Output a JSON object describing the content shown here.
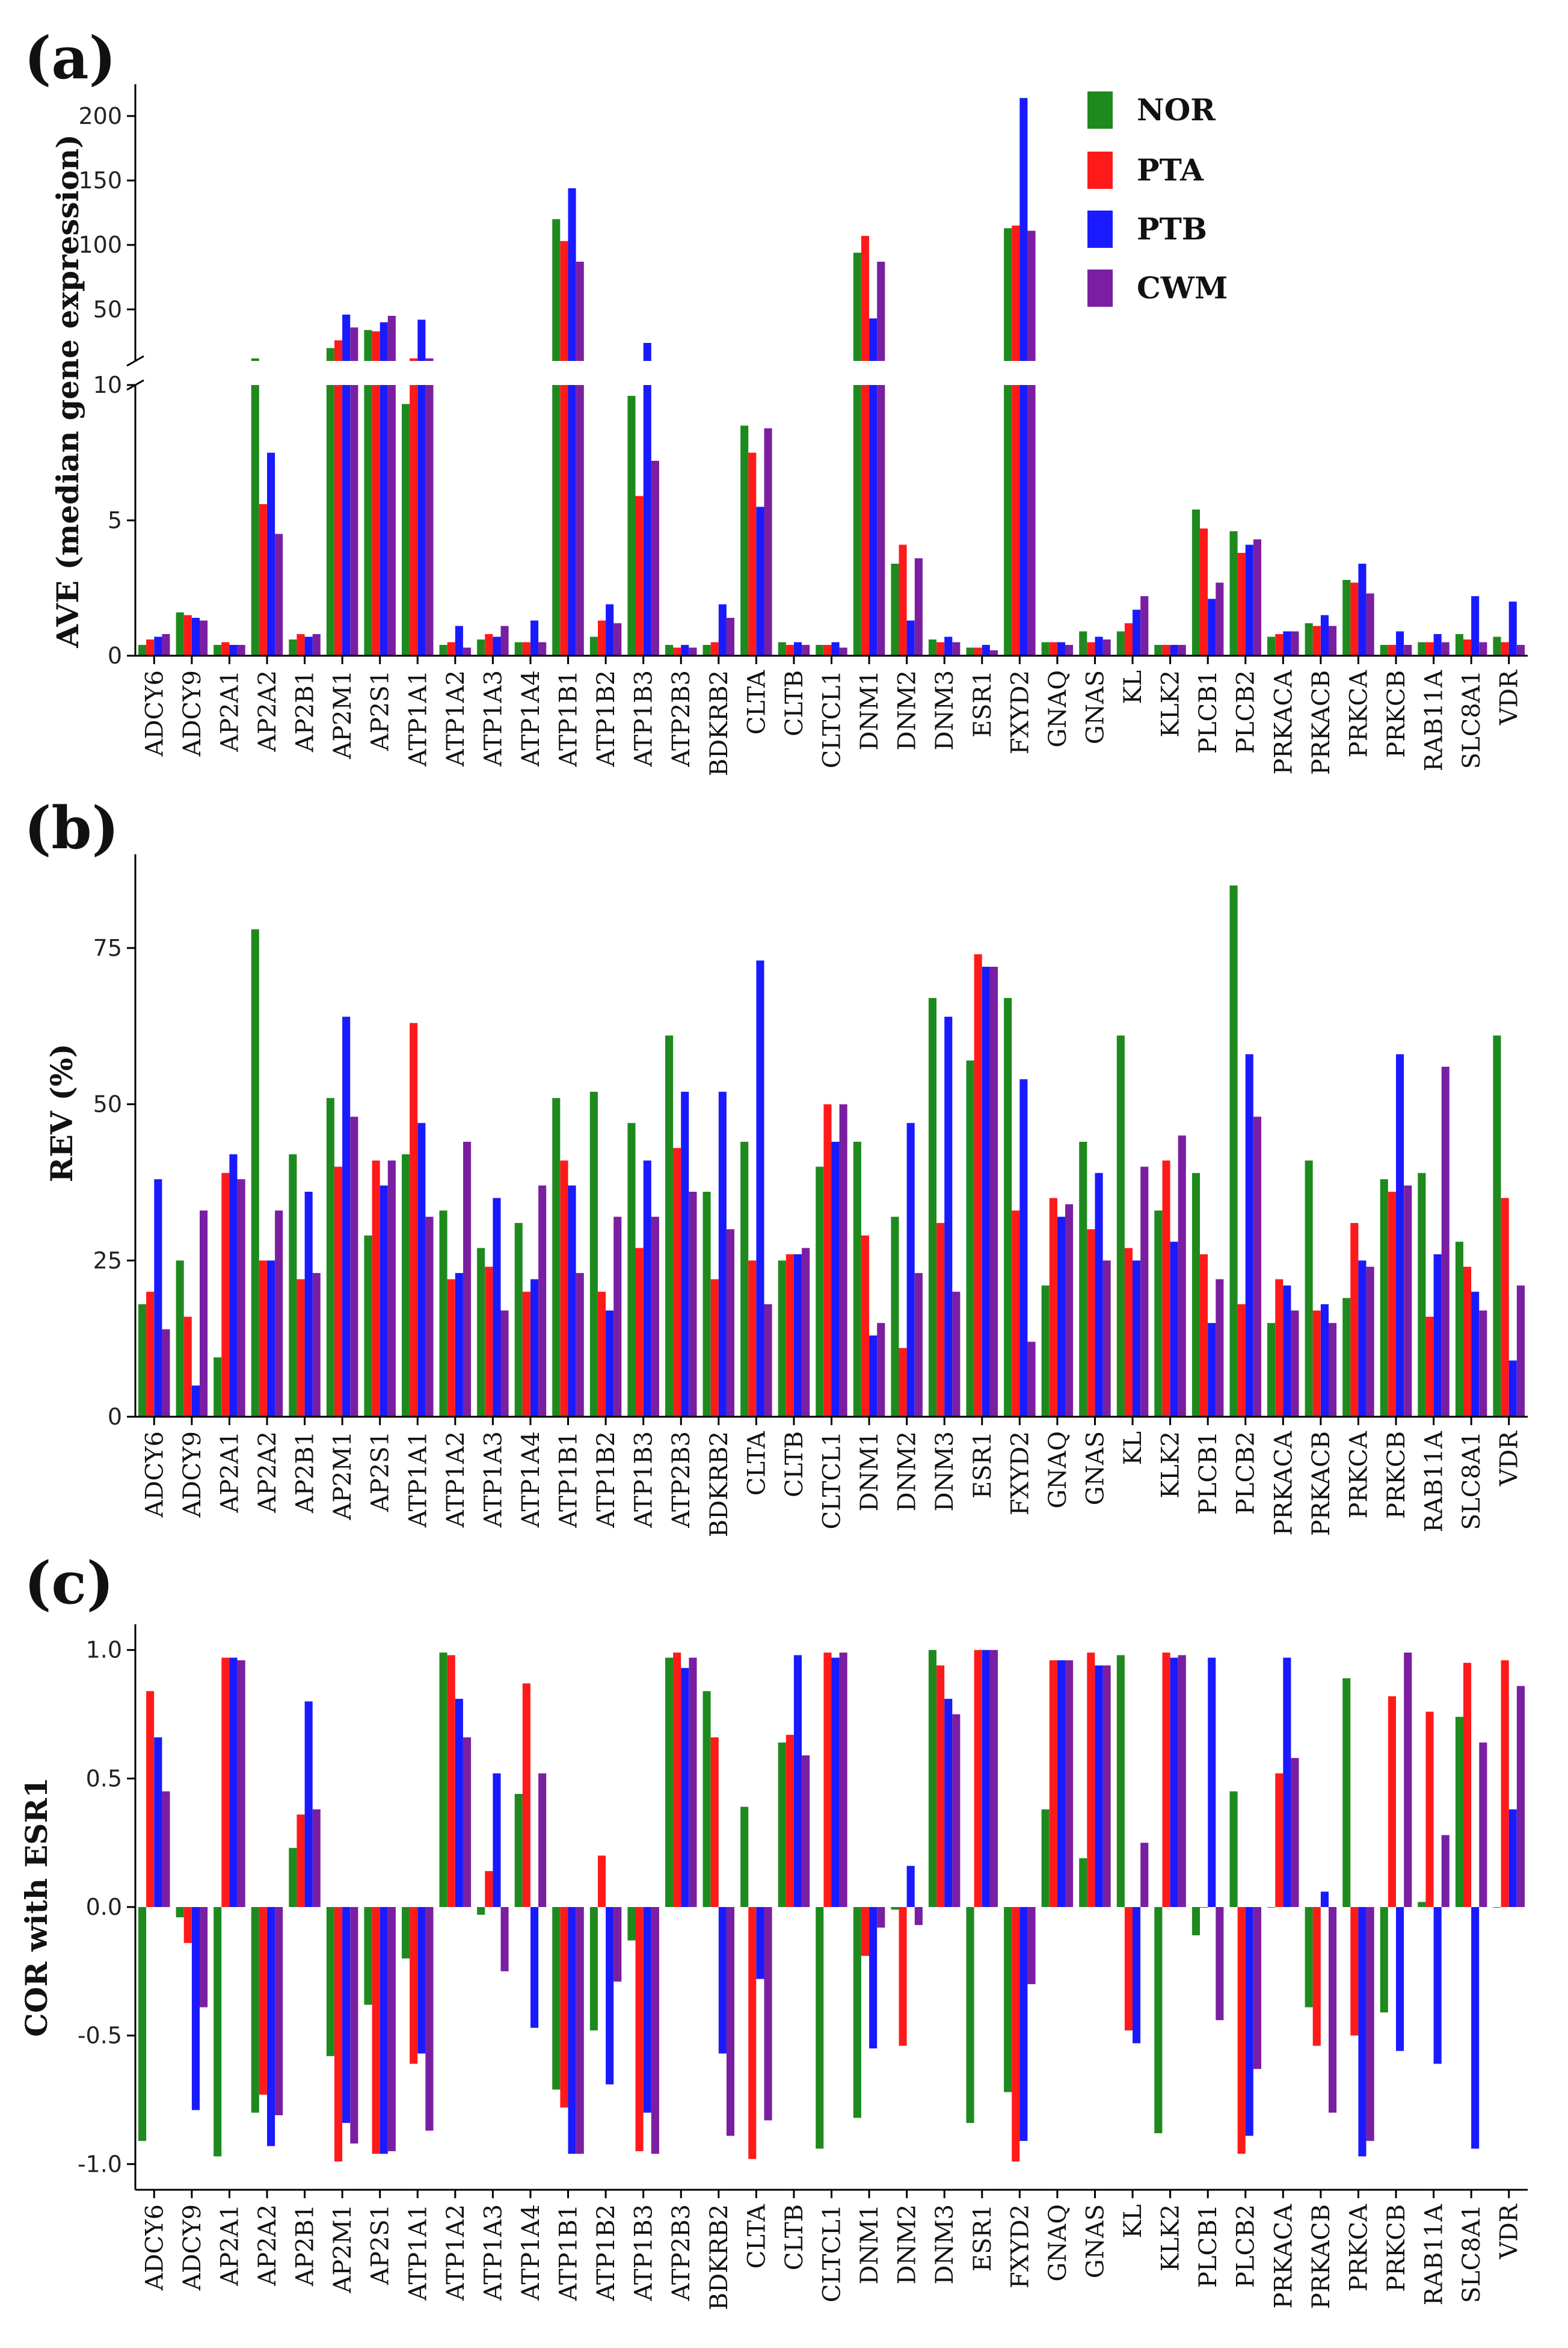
{
  "legend": [
    {
      "name": "NOR",
      "color": "#1e8a1e"
    },
    {
      "name": "PTA",
      "color": "#ff1a1a"
    },
    {
      "name": "PTB",
      "color": "#1a1aff"
    },
    {
      "name": "CWM",
      "color": "#7a1fa2"
    }
  ],
  "chart_data": [
    {
      "type": "bar",
      "panel_label": "(a)",
      "ylabel": "AVE (median gene expression)",
      "axis_break": true,
      "lower_ylim": [
        0,
        10
      ],
      "lower_yticks": [
        "0",
        "5",
        "10"
      ],
      "upper_ylim": [
        10,
        220
      ],
      "upper_yticks": [
        "50",
        "100",
        "150",
        "200"
      ],
      "categories": [
        "ADCY6",
        "ADCY9",
        "AP2A1",
        "AP2A2",
        "AP2B1",
        "AP2M1",
        "AP2S1",
        "ATP1A1",
        "ATP1A2",
        "ATP1A3",
        "ATP1A4",
        "ATP1B1",
        "ATP1B2",
        "ATP1B3",
        "ATP2B3",
        "BDKRB2",
        "CLTA",
        "CLTB",
        "CLTCL1",
        "DNM1",
        "DNM2",
        "DNM3",
        "ESR1",
        "FXYD2",
        "GNAQ",
        "GNAS",
        "KL",
        "KLK2",
        "PLCB1",
        "PLCB2",
        "PRKACA",
        "PRKACB",
        "PRKCA",
        "PRKCB",
        "RAB11A",
        "SLC8A1",
        "VDR"
      ],
      "series": [
        {
          "name": "NOR",
          "values": [
            0.4,
            1.6,
            0.4,
            12,
            0.6,
            20,
            34,
            9.3,
            0.4,
            0.6,
            0.5,
            120,
            0.7,
            9.6,
            0.4,
            0.4,
            8.5,
            0.5,
            0.4,
            94,
            3.4,
            0.6,
            0.3,
            113,
            0.5,
            0.9,
            0.9,
            0.4,
            5.4,
            4.6,
            0.7,
            1.2,
            2.8,
            0.4,
            0.5,
            0.8,
            0.7
          ]
        },
        {
          "name": "PTA",
          "values": [
            0.6,
            1.5,
            0.5,
            5.6,
            0.8,
            26,
            33,
            12,
            0.5,
            0.8,
            0.5,
            103,
            1.3,
            5.9,
            0.3,
            0.5,
            7.5,
            0.4,
            0.4,
            107,
            4.1,
            0.5,
            0.3,
            115,
            0.5,
            0.5,
            1.2,
            0.4,
            4.7,
            3.8,
            0.8,
            1.1,
            2.7,
            0.4,
            0.5,
            0.6,
            0.5
          ]
        },
        {
          "name": "PTB",
          "values": [
            0.7,
            1.4,
            0.4,
            7.5,
            0.7,
            46,
            40,
            42,
            1.1,
            0.7,
            1.3,
            144,
            1.9,
            24,
            0.4,
            1.9,
            5.5,
            0.5,
            0.5,
            43,
            1.3,
            0.7,
            0.4,
            214,
            0.5,
            0.7,
            1.7,
            0.4,
            2.1,
            4.1,
            0.9,
            1.5,
            3.4,
            0.9,
            0.8,
            2.2,
            2.0
          ]
        },
        {
          "name": "CWM",
          "values": [
            0.8,
            1.3,
            0.4,
            4.5,
            0.8,
            36,
            45,
            12,
            0.3,
            1.1,
            0.5,
            87,
            1.2,
            7.2,
            0.3,
            1.4,
            8.4,
            0.4,
            0.3,
            87,
            3.6,
            0.5,
            0.2,
            111,
            0.4,
            0.6,
            2.2,
            0.4,
            2.7,
            4.3,
            0.9,
            1.1,
            2.3,
            0.4,
            0.5,
            0.5,
            0.4
          ]
        }
      ]
    },
    {
      "type": "bar",
      "panel_label": "(b)",
      "ylabel": "REV (%)",
      "ylim": [
        0,
        90
      ],
      "yticks": [
        "0",
        "25",
        "50",
        "75"
      ],
      "categories": [
        "ADCY6",
        "ADCY9",
        "AP2A1",
        "AP2A2",
        "AP2B1",
        "AP2M1",
        "AP2S1",
        "ATP1A1",
        "ATP1A2",
        "ATP1A3",
        "ATP1A4",
        "ATP1B1",
        "ATP1B2",
        "ATP1B3",
        "ATP2B3",
        "BDKRB2",
        "CLTA",
        "CLTB",
        "CLTCL1",
        "DNM1",
        "DNM2",
        "DNM3",
        "ESR1",
        "FXYD2",
        "GNAQ",
        "GNAS",
        "KL",
        "KLK2",
        "PLCB1",
        "PLCB2",
        "PRKACA",
        "PRKACB",
        "PRKCA",
        "PRKCB",
        "RAB11A",
        "SLC8A1",
        "VDR"
      ],
      "series": [
        {
          "name": "NOR",
          "values": [
            18,
            25,
            9.5,
            78,
            42,
            51,
            29,
            42,
            33,
            27,
            31,
            51,
            52,
            47,
            61,
            36,
            44,
            25,
            40,
            44,
            32,
            67,
            57,
            67,
            21,
            44,
            61,
            33,
            39,
            85,
            15,
            41,
            19,
            38,
            39,
            28,
            61
          ]
        },
        {
          "name": "PTA",
          "values": [
            20,
            16,
            39,
            25,
            22,
            40,
            41,
            63,
            22,
            24,
            20,
            41,
            20,
            27,
            43,
            22,
            25,
            26,
            50,
            29,
            11,
            31,
            74,
            33,
            35,
            30,
            27,
            41,
            26,
            18,
            22,
            17,
            31,
            36,
            16,
            24,
            35
          ]
        },
        {
          "name": "PTB",
          "values": [
            38,
            5,
            42,
            25,
            36,
            64,
            37,
            47,
            23,
            35,
            22,
            37,
            17,
            41,
            52,
            52,
            73,
            26,
            44,
            13,
            47,
            64,
            72,
            54,
            32,
            39,
            25,
            28,
            15,
            58,
            21,
            18,
            25,
            58,
            26,
            20,
            9
          ]
        },
        {
          "name": "CWM",
          "values": [
            14,
            33,
            38,
            33,
            23,
            48,
            41,
            32,
            44,
            17,
            37,
            23,
            32,
            32,
            36,
            30,
            18,
            27,
            50,
            15,
            23,
            20,
            72,
            12,
            34,
            25,
            40,
            45,
            22,
            48,
            17,
            15,
            24,
            37,
            56,
            17,
            21
          ]
        }
      ]
    },
    {
      "type": "bar",
      "panel_label": "(c)",
      "ylabel": "COR with ESR1",
      "ylim": [
        -1.1,
        1.1
      ],
      "yticks": [
        "-1.0",
        "-0.5",
        "0.0",
        "0.5",
        "1.0"
      ],
      "categories": [
        "ADCY6",
        "ADCY9",
        "AP2A1",
        "AP2A2",
        "AP2B1",
        "AP2M1",
        "AP2S1",
        "ATP1A1",
        "ATP1A2",
        "ATP1A3",
        "ATP1A4",
        "ATP1B1",
        "ATP1B2",
        "ATP1B3",
        "ATP2B3",
        "BDKRB2",
        "CLTA",
        "CLTB",
        "CLTCL1",
        "DNM1",
        "DNM2",
        "DNM3",
        "ESR1",
        "FXYD2",
        "GNAQ",
        "GNAS",
        "KL",
        "KLK2",
        "PLCB1",
        "PLCB2",
        "PRKACA",
        "PRKACB",
        "PRKCA",
        "PRKCB",
        "RAB11A",
        "SLC8A1",
        "VDR"
      ],
      "series": [
        {
          "name": "NOR",
          "values": [
            -0.91,
            -0.04,
            -0.97,
            -0.8,
            0.23,
            -0.58,
            -0.38,
            -0.2,
            0.99,
            -0.03,
            0.44,
            -0.71,
            -0.48,
            -0.13,
            0.97,
            0.84,
            0.39,
            0.64,
            -0.94,
            -0.82,
            -0.01,
            1.0,
            -0.84,
            -0.72,
            0.38,
            0.19,
            0.98,
            -0.88,
            -0.11,
            0.45,
            0.0,
            -0.39,
            0.89,
            -0.41,
            0.02,
            0.74,
            0.0
          ]
        },
        {
          "name": "PTA",
          "values": [
            0.84,
            -0.14,
            0.97,
            -0.73,
            0.36,
            -0.99,
            -0.96,
            -0.61,
            0.98,
            0.14,
            0.87,
            -0.78,
            0.2,
            -0.95,
            0.99,
            0.66,
            -0.98,
            0.67,
            0.99,
            -0.19,
            -0.54,
            0.94,
            1.0,
            -0.99,
            0.96,
            0.99,
            -0.48,
            0.99,
            0.0,
            -0.96,
            0.52,
            -0.54,
            -0.5,
            0.82,
            0.76,
            0.95,
            0.96
          ]
        },
        {
          "name": "PTB",
          "values": [
            0.66,
            -0.79,
            0.97,
            -0.93,
            0.8,
            -0.84,
            -0.96,
            -0.57,
            0.81,
            0.52,
            -0.47,
            -0.96,
            -0.69,
            -0.8,
            0.93,
            -0.57,
            -0.28,
            0.98,
            0.97,
            -0.55,
            0.16,
            0.81,
            1.0,
            -0.91,
            0.96,
            0.94,
            -0.53,
            0.97,
            0.97,
            -0.89,
            0.97,
            0.06,
            -0.97,
            -0.56,
            -0.61,
            -0.94,
            0.38
          ]
        },
        {
          "name": "CWM",
          "values": [
            0.45,
            -0.39,
            0.96,
            -0.81,
            0.38,
            -0.92,
            -0.95,
            -0.87,
            0.66,
            -0.25,
            0.52,
            -0.96,
            -0.29,
            -0.96,
            0.97,
            -0.89,
            -0.83,
            0.59,
            0.99,
            -0.08,
            -0.07,
            0.75,
            1.0,
            -0.3,
            0.96,
            0.94,
            0.25,
            0.98,
            -0.44,
            -0.63,
            0.58,
            -0.8,
            -0.91,
            0.99,
            0.28,
            0.64,
            0.86
          ]
        }
      ]
    }
  ]
}
